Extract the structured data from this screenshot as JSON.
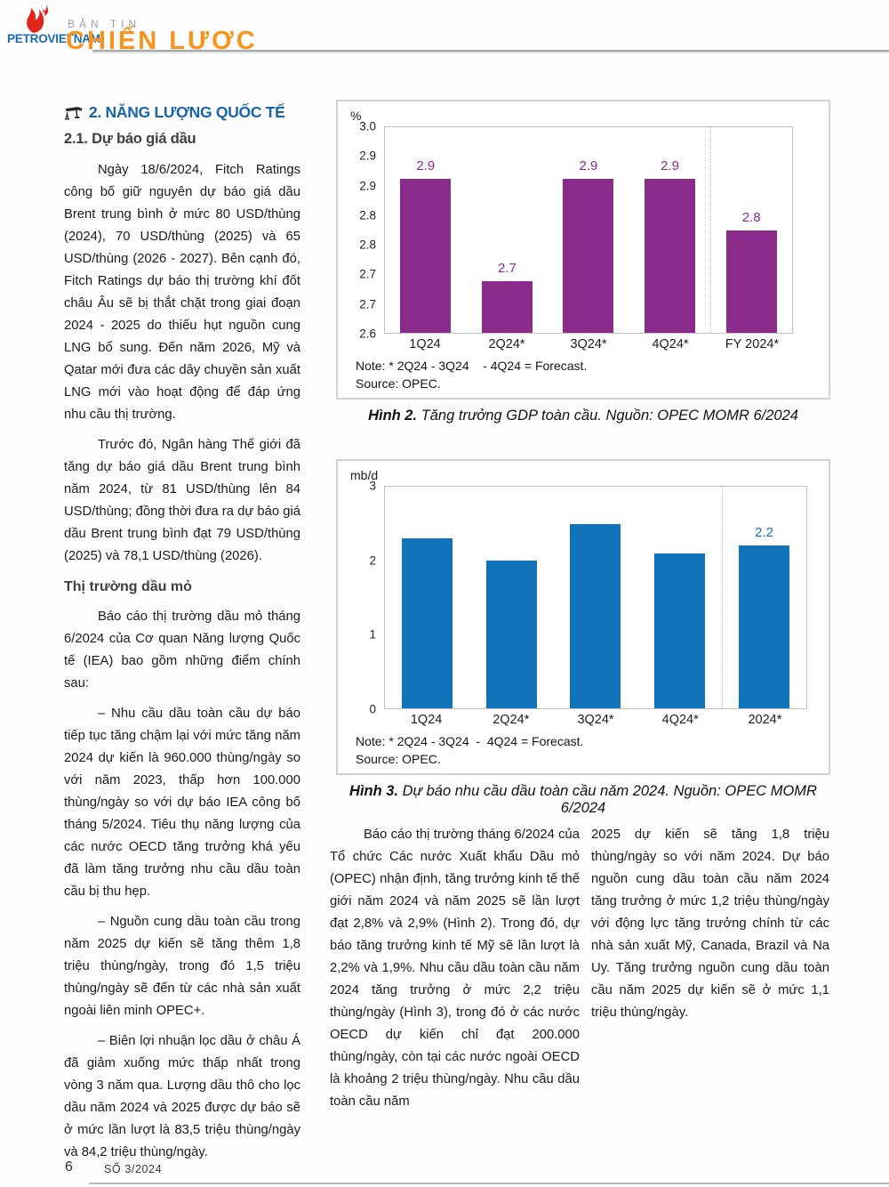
{
  "header": {
    "brand": "PETROVIETNAM",
    "kicker": "BẢN TIN",
    "title": "CHIẾN LƯỢC"
  },
  "colors": {
    "heading_blue": "#1765a5",
    "brand_blue": "#1b6ab0",
    "title_orange": "#f7941d",
    "flame_red": "#e0251c",
    "bar_purple": "#8a2a8b",
    "bar_blue": "#1173b9"
  },
  "left_column": {
    "section_heading": "2. NĂNG LƯỢNG QUỐC TẾ",
    "sub_heading": "2.1. Dự báo giá dầu",
    "p1": "Ngày 18/6/2024, Fitch Ratings công bố giữ nguyên dự báo giá dầu Brent trung bình ở mức 80 USD/thùng (2024), 70 USD/thùng (2025) và 65 USD/thùng (2026 - 2027). Bên cạnh đó, Fitch Ratings dự báo thị trường khí đốt châu Âu sẽ bị thắt chặt trong giai đoạn 2024 - 2025 do thiếu hụt nguồn cung LNG bổ sung. Đến năm 2026, Mỹ và Qatar mới đưa các dây chuyền sản xuất LNG mới vào hoạt động để đáp ứng nhu cầu thị trường.",
    "p2": "Trước đó, Ngân hàng Thế giới đã tăng dự báo giá dầu Brent trung bình năm 2024, từ 81 USD/thùng lên 84 USD/thùng; đồng thời đưa ra dự báo giá dầu Brent trung bình đạt 79 USD/thùng (2025) và 78,1 USD/thùng (2026).",
    "market_heading": "Thị trường dầu mỏ",
    "p3": "Báo cáo thị trường dầu mỏ tháng 6/2024 của Cơ quan Năng lượng Quốc tế (IEA)  bao gồm những điểm chính sau:",
    "bullet1": "–    Nhu cầu dầu toàn cầu dự báo tiếp tục tăng chậm lại với mức tăng năm 2024 dự kiến là 960.000 thùng/ngày so với năm 2023, thấp hơn 100.000 thùng/ngày so với dự báo IEA công bố tháng 5/2024. Tiêu thụ năng lượng của các nước OECD tăng trưởng khá yếu đã làm tăng trưởng nhu cầu dầu toàn cầu bị thu hẹp.",
    "bullet2": "–    Nguồn cung dầu toàn cầu trong năm 2025 dự kiến sẽ tăng thêm 1,8 triệu thùng/ngày, trong đó 1,5 triệu thùng/ngày sẽ đến từ các nhà sản xuất ngoài liên minh OPEC+.",
    "bullet3": "–    Biên lợi nhuận lọc dầu ở châu Á đã giảm xuống mức thấp nhất trong vòng 3 năm qua. Lượng dầu thô cho lọc dầu năm 2024 và 2025 được dự báo sẽ ở mức lần lượt là 83,5 triệu thùng/ngày và 84,2 triệu thùng/ngày."
  },
  "middle_column": {
    "p1": "Báo cáo thị trường tháng 6/2024 của Tổ chức Các nước Xuất khẩu Dầu mỏ (OPEC)  nhận định, tăng trưởng kinh tế thế giới năm 2024 và năm 2025 sẽ lần lượt đạt 2,8% và 2,9% (Hình 2). Trong đó, dự báo tăng trưởng kinh tế Mỹ sẽ lần lượt là 2,2% và 1,9%. Nhu cầu dầu toàn cầu năm 2024 tăng trưởng ở mức 2,2 triệu thùng/ngày (Hình 3), trong đó ở các nước OECD dự kiến chỉ đạt 200.000 thùng/ngày, còn tại các nước ngoài OECD là khoảng 2 triệu thùng/ngày. Nhu cầu dầu toàn cầu năm"
  },
  "right_column": {
    "p1": "2025 dự kiến sẽ tăng 1,8 triệu thùng/ngày so với năm 2024. Dự báo nguồn cung dầu toàn cầu năm 2024 tăng trưởng ở mức 1,2 triệu thùng/ngày với động lực tăng trưởng chính từ các nhà sản xuất Mỹ, Canada, Brazil và Na Uy. Tăng trưởng nguồn cung dầu toàn cầu năm 2025 dự kiến sẽ ở mức 1,1 triệu thùng/ngày."
  },
  "chart_data": [
    {
      "type": "bar",
      "title": "Tăng trưởng GDP toàn cầu",
      "unit_label": "%",
      "categories": [
        "1Q24",
        "2Q24*",
        "3Q24*",
        "4Q24*",
        "FY 2024*"
      ],
      "values": [
        2.9,
        2.7,
        2.9,
        2.9,
        2.8
      ],
      "bar_labels": [
        "2.9",
        "2.7",
        "2.9",
        "2.9",
        "2.8"
      ],
      "ylim": [
        2.6,
        3.0
      ],
      "y_tick_labels": [
        "3.0",
        "2.9",
        "2.9",
        "2.8",
        "2.8",
        "2.7",
        "2.7",
        "2.6"
      ],
      "grid": false,
      "legend": "none",
      "bar_color": "#8a2a8b",
      "separator_before_index": 4,
      "note": "Note: * 2Q24 - 3Q24    - 4Q24 = Forecast.",
      "source": "Source: OPEC.",
      "caption_label": "Hình 2.",
      "caption_text": "Tăng trưởng GDP toàn cầu. Nguồn: OPEC MOMR 6/2024"
    },
    {
      "type": "bar",
      "title": "Dự báo nhu cầu dầu toàn cầu năm 2024",
      "unit_label": "mb/d",
      "categories": [
        "1Q24",
        "2Q24*",
        "3Q24*",
        "4Q24*",
        "2024*"
      ],
      "values": [
        2.3,
        2.0,
        2.5,
        2.1,
        2.2
      ],
      "bar_labels": [
        "",
        "",
        "",
        "",
        "2.2"
      ],
      "ylim": [
        0,
        3
      ],
      "y_tick_labels": [
        "3",
        "2",
        "1",
        "0"
      ],
      "grid": false,
      "legend": "none",
      "bar_color": "#1173b9",
      "separator_before_index": 4,
      "note": "Note: * 2Q24 - 3Q24  -  4Q24 = Forecast.",
      "source": "Source: OPEC.",
      "caption_label": "Hình 3.",
      "caption_text": "Dự báo nhu cầu dầu toàn cầu năm 2024. Nguồn: OPEC MOMR 6/2024"
    }
  ],
  "footer": {
    "page_number": "6",
    "issue": "SỐ 3/2024"
  }
}
